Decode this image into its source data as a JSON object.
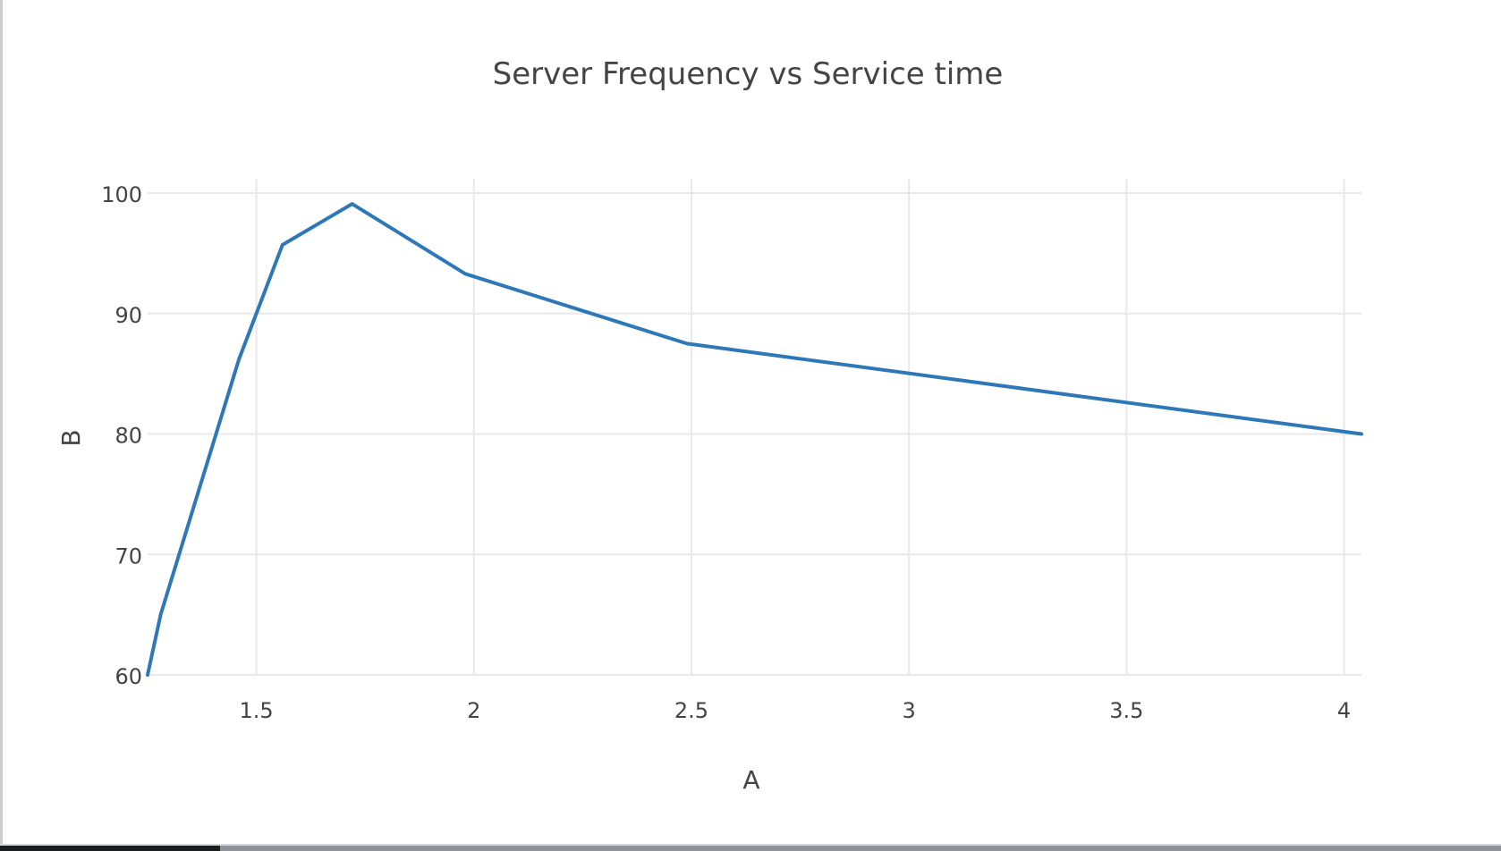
{
  "chart_data": {
    "type": "line",
    "title": "Server Frequency vs Service time",
    "xlabel": "A",
    "ylabel": "B",
    "xlim": [
      1.25,
      4.04
    ],
    "ylim": [
      60,
      100
    ],
    "xticks": [
      "1.5",
      "2",
      "2.5",
      "3",
      "3.5",
      "4"
    ],
    "yticks": [
      "60",
      "70",
      "80",
      "90",
      "100"
    ],
    "grid": true,
    "legend": "none",
    "line_color": "#2e78b7",
    "series": [
      {
        "x": [
          1.25,
          1.28,
          1.46,
          1.56,
          1.72,
          1.98,
          2.49,
          4.04
        ],
        "y": [
          60.0,
          65.0,
          86.2,
          95.7,
          99.1,
          93.3,
          87.5,
          80.0
        ]
      }
    ]
  }
}
